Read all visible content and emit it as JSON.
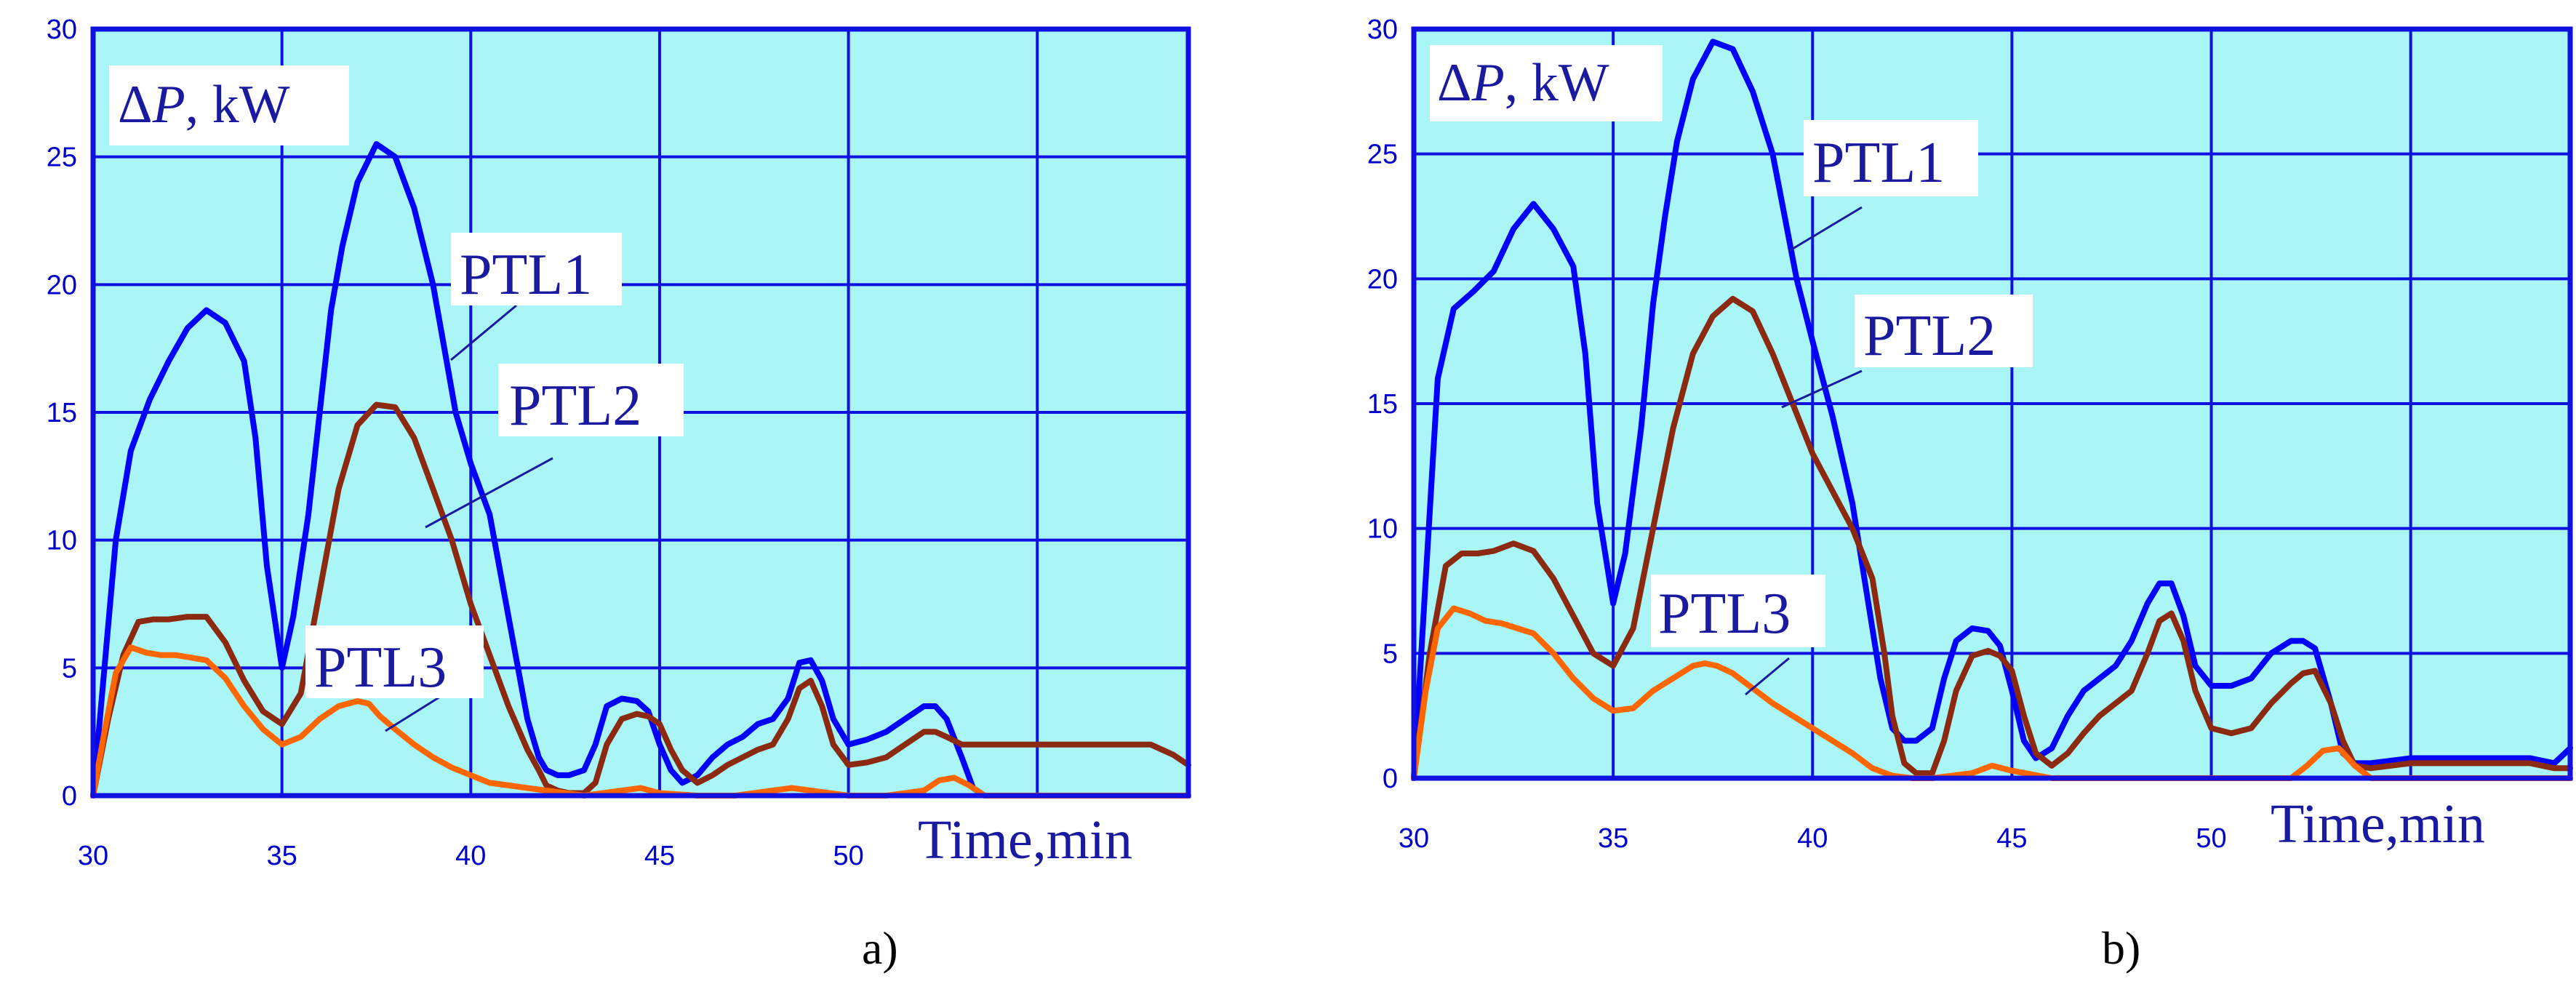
{
  "colors": {
    "plot_background": "#aaf6f6",
    "grid": "#1010e0",
    "frame": "#1010e0",
    "PTL1": "#0000ff",
    "PTL2": "#8b2a10",
    "PTL3": "#ff6600",
    "tick_text": "#0000cc",
    "label_text": "#1a1aa0"
  },
  "chart_data": [
    {
      "type": "line",
      "caption": "a)",
      "ylabel_parts": [
        "Δ",
        "P",
        ", kW"
      ],
      "xlabel": "Time,min",
      "xlim": [
        30,
        59
      ],
      "ylim": [
        0,
        30
      ],
      "x_ticks": [
        30,
        35,
        40,
        45,
        50
      ],
      "y_ticks": [
        0,
        5,
        10,
        15,
        20,
        25,
        30
      ],
      "grid": true,
      "series": [
        {
          "name": "PTL1",
          "x": [
            30,
            30.3,
            30.6,
            31,
            31.5,
            32,
            32.5,
            33,
            33.5,
            34,
            34.3,
            34.6,
            35,
            35.3,
            35.7,
            36,
            36.3,
            36.6,
            37,
            37.5,
            38,
            38.5,
            39,
            39.3,
            39.6,
            40,
            40.5,
            41,
            41.5,
            41.8,
            42,
            42.3,
            42.6,
            43,
            43.3,
            43.6,
            44,
            44.4,
            44.7,
            45,
            45.3,
            45.6,
            46,
            46.4,
            46.8,
            47.2,
            47.6,
            48,
            48.4,
            48.7,
            49,
            49.3,
            49.6,
            50,
            50.5,
            51,
            51.5,
            52,
            52.3,
            52.6,
            53,
            53.3,
            53.6,
            54,
            55,
            56,
            57,
            58,
            59
          ],
          "values": [
            0,
            5,
            10,
            13.5,
            15.5,
            17,
            18.3,
            19,
            18.5,
            17,
            14,
            9,
            5,
            7,
            11,
            15,
            19,
            21.5,
            24,
            25.5,
            25,
            23,
            20,
            17.5,
            15,
            13,
            11,
            7,
            3,
            1.5,
            1,
            0.8,
            0.8,
            1,
            2,
            3.5,
            3.8,
            3.7,
            3.3,
            2,
            1,
            0.5,
            0.8,
            1.5,
            2,
            2.3,
            2.8,
            3,
            3.8,
            5.2,
            5.3,
            4.5,
            3,
            2,
            2.2,
            2.5,
            3,
            3.5,
            3.5,
            3,
            1.5,
            0.3,
            0,
            0,
            0,
            0,
            0,
            0,
            0
          ]
        },
        {
          "name": "PTL2",
          "x": [
            30,
            30.4,
            30.8,
            31.2,
            31.6,
            32,
            32.5,
            33,
            33.5,
            34,
            34.5,
            35,
            35.5,
            36,
            36.5,
            37,
            37.5,
            38,
            38.5,
            39,
            39.5,
            40,
            40.5,
            41,
            41.5,
            41.8,
            42,
            42.3,
            42.6,
            43,
            43.3,
            43.6,
            44,
            44.4,
            44.7,
            45,
            45.3,
            45.6,
            46,
            46.4,
            46.8,
            47.2,
            47.6,
            48,
            48.4,
            48.7,
            49,
            49.3,
            49.6,
            50,
            50.5,
            51,
            51.5,
            52,
            52.3,
            52.6,
            53,
            53.5,
            54,
            55,
            56,
            57,
            58,
            58.6,
            59
          ],
          "values": [
            0,
            3,
            5.5,
            6.8,
            6.9,
            6.9,
            7,
            7,
            6,
            4.5,
            3.3,
            2.8,
            4,
            8,
            12,
            14.5,
            15.3,
            15.2,
            14,
            12,
            10,
            7.5,
            5.5,
            3.5,
            1.8,
            1,
            0.4,
            0.2,
            0.1,
            0.1,
            0.5,
            2,
            3,
            3.2,
            3.1,
            2.8,
            1.8,
            1,
            0.5,
            0.8,
            1.2,
            1.5,
            1.8,
            2,
            3,
            4.2,
            4.5,
            3.5,
            2,
            1.2,
            1.3,
            1.5,
            2,
            2.5,
            2.5,
            2.3,
            2,
            2,
            2,
            2,
            2,
            2,
            2,
            1.6,
            1.2
          ]
        },
        {
          "name": "PTL3",
          "x": [
            30,
            30.3,
            30.6,
            31,
            31.4,
            31.8,
            32.2,
            32.6,
            33,
            33.5,
            34,
            34.5,
            35,
            35.5,
            36,
            36.5,
            37,
            37.3,
            37.6,
            38,
            38.5,
            39,
            39.5,
            40,
            40.5,
            41,
            41.5,
            42,
            42.5,
            43,
            44,
            44.5,
            45,
            46,
            47,
            48,
            48.5,
            49,
            49.5,
            50,
            51,
            52,
            52.4,
            52.8,
            53.2,
            53.6,
            54,
            55,
            56,
            57,
            58,
            59
          ],
          "values": [
            0,
            2.5,
            4.8,
            5.8,
            5.6,
            5.5,
            5.5,
            5.4,
            5.3,
            4.6,
            3.5,
            2.6,
            2,
            2.3,
            3,
            3.5,
            3.7,
            3.6,
            3.1,
            2.6,
            2,
            1.5,
            1.1,
            0.8,
            0.5,
            0.4,
            0.3,
            0.2,
            0.1,
            0,
            0.2,
            0.3,
            0.1,
            0,
            0,
            0.2,
            0.3,
            0.2,
            0.1,
            0,
            0,
            0.2,
            0.6,
            0.7,
            0.4,
            0,
            0,
            0,
            0,
            0,
            0,
            0
          ]
        }
      ]
    },
    {
      "type": "line",
      "caption": "b)",
      "ylabel_parts": [
        "Δ",
        "P",
        ", kW"
      ],
      "xlabel": "Time,min",
      "xlim": [
        30,
        59
      ],
      "ylim": [
        0,
        30
      ],
      "x_ticks": [
        30,
        35,
        40,
        45,
        50
      ],
      "y_ticks": [
        0,
        5,
        10,
        15,
        20,
        25,
        30
      ],
      "grid": true,
      "series": [
        {
          "name": "PTL1",
          "x": [
            30,
            30.3,
            30.6,
            31,
            31.5,
            32,
            32.5,
            33,
            33.5,
            34,
            34.3,
            34.6,
            35,
            35.3,
            35.7,
            36,
            36.3,
            36.6,
            37,
            37.5,
            38,
            38.5,
            39,
            39.3,
            39.6,
            40,
            40.5,
            41,
            41.4,
            41.7,
            42,
            42.3,
            42.6,
            43,
            43.3,
            43.6,
            44,
            44.4,
            44.7,
            45,
            45.3,
            45.6,
            46,
            46.4,
            46.8,
            47.2,
            47.6,
            48,
            48.4,
            48.7,
            49,
            49.3,
            49.6,
            50,
            50.5,
            51,
            51.5,
            52,
            52.3,
            52.6,
            53,
            53.3,
            53.6,
            54,
            55,
            56,
            57,
            58,
            58.6,
            59
          ],
          "values": [
            0,
            8,
            16,
            18.8,
            19.5,
            20.3,
            22,
            23,
            22,
            20.5,
            17,
            11,
            7,
            9,
            14,
            19,
            22.5,
            25.5,
            28,
            29.5,
            29.2,
            27.5,
            25,
            22.5,
            20,
            17.5,
            14.5,
            11,
            7,
            4,
            2,
            1.5,
            1.5,
            2,
            4,
            5.5,
            6,
            5.9,
            5.3,
            3.5,
            1.5,
            0.8,
            1.2,
            2.5,
            3.5,
            4,
            4.5,
            5.5,
            7,
            7.8,
            7.8,
            6.5,
            4.5,
            3.7,
            3.7,
            4,
            5,
            5.5,
            5.5,
            5.2,
            3,
            1,
            0.6,
            0.6,
            0.8,
            0.8,
            0.8,
            0.8,
            0.6,
            1.2
          ]
        },
        {
          "name": "PTL2",
          "x": [
            30,
            30.4,
            30.8,
            31.2,
            31.6,
            32,
            32.5,
            33,
            33.5,
            34,
            34.5,
            35,
            35.5,
            36,
            36.5,
            37,
            37.5,
            38,
            38.5,
            39,
            39.5,
            40,
            40.5,
            41,
            41.5,
            41.8,
            42,
            42.3,
            42.6,
            43,
            43.3,
            43.6,
            44,
            44.4,
            44.7,
            45,
            45.3,
            45.6,
            46,
            46.4,
            46.8,
            47.2,
            47.6,
            48,
            48.4,
            48.7,
            49,
            49.3,
            49.6,
            50,
            50.5,
            51,
            51.5,
            52,
            52.3,
            52.6,
            53,
            53.3,
            53.6,
            54,
            55,
            56,
            57,
            58,
            58.6,
            59
          ],
          "values": [
            0,
            5,
            8.5,
            9,
            9,
            9.1,
            9.4,
            9.1,
            8,
            6.5,
            5,
            4.5,
            6,
            10,
            14,
            17,
            18.5,
            19.2,
            18.7,
            17,
            15,
            13,
            11.5,
            10,
            8,
            5,
            2.5,
            0.6,
            0.2,
            0.2,
            1.5,
            3.5,
            4.9,
            5.1,
            4.9,
            4.3,
            2.5,
            1,
            0.5,
            1,
            1.8,
            2.5,
            3,
            3.5,
            5,
            6.3,
            6.6,
            5.5,
            3.5,
            2,
            1.8,
            2,
            3,
            3.8,
            4.2,
            4.3,
            3,
            1.5,
            0.5,
            0.4,
            0.6,
            0.6,
            0.6,
            0.6,
            0.4,
            0.4
          ]
        },
        {
          "name": "PTL3",
          "x": [
            30,
            30.3,
            30.6,
            31,
            31.4,
            31.8,
            32.2,
            32.6,
            33,
            33.5,
            34,
            34.5,
            35,
            35.5,
            36,
            36.5,
            37,
            37.3,
            37.6,
            38,
            38.5,
            39,
            39.5,
            40,
            40.5,
            41,
            41.5,
            42,
            42.5,
            43,
            44,
            44.5,
            45,
            46,
            47,
            48,
            49,
            50,
            51,
            52,
            52.4,
            52.8,
            53.2,
            53.6,
            54,
            55,
            56,
            57,
            58,
            59
          ],
          "values": [
            0,
            3.5,
            6,
            6.8,
            6.6,
            6.3,
            6.2,
            6,
            5.8,
            5,
            4,
            3.2,
            2.7,
            2.8,
            3.5,
            4,
            4.5,
            4.6,
            4.5,
            4.2,
            3.6,
            3,
            2.5,
            2,
            1.5,
            1,
            0.4,
            0.1,
            0,
            0,
            0.2,
            0.5,
            0.3,
            0,
            0,
            0,
            0,
            0,
            0,
            0,
            0.5,
            1.1,
            1.2,
            0.5,
            0,
            0,
            0,
            0,
            0,
            0
          ]
        }
      ]
    }
  ]
}
